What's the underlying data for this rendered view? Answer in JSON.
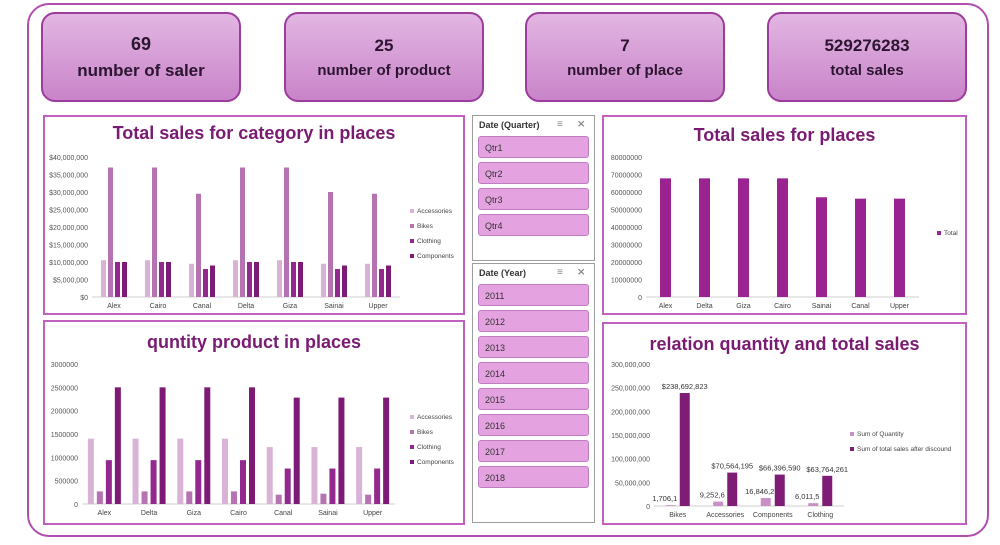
{
  "kpis": [
    {
      "value": "69",
      "label": "number of saler"
    },
    {
      "value": "25",
      "label": "number of product"
    },
    {
      "value": "7",
      "label": "number of place"
    },
    {
      "value": "529276283",
      "label": "total sales"
    }
  ],
  "slicers": {
    "quarter": {
      "title": "Date (Quarter)",
      "items": [
        "Qtr1",
        "Qtr2",
        "Qtr3",
        "Qtr4"
      ]
    },
    "year": {
      "title": "Date (Year)",
      "items": [
        "2011",
        "2012",
        "2013",
        "2014",
        "2015",
        "2016",
        "2017",
        "2018"
      ]
    }
  },
  "colors": {
    "accessories": "#d9b3d6",
    "bikes": "#b673b2",
    "clothing": "#93298f",
    "components": "#7d1a75",
    "total": "#9a2392",
    "quantity": "#c78fc4",
    "sales_after_discount": "#7f1d76"
  },
  "chart_data": [
    {
      "type": "bar",
      "title": "Total sales for category in places",
      "categories": [
        "Alex",
        "Cairo",
        "Canal",
        "Delta",
        "Giza",
        "Sainai",
        "Upper"
      ],
      "yticks": [
        "$40,000,000",
        "$35,000,000",
        "$30,000,000",
        "$25,000,000",
        "$20,000,000",
        "$15,000,000",
        "$10,000,000",
        "$5,000,000",
        "$0"
      ],
      "ylim": [
        0,
        40000000
      ],
      "legend": "right",
      "series": [
        {
          "name": "Accessories",
          "values": [
            10500000,
            10500000,
            9500000,
            10500000,
            10500000,
            9500000,
            9500000
          ]
        },
        {
          "name": "Bikes",
          "values": [
            37000000,
            37000000,
            29500000,
            37000000,
            37000000,
            30000000,
            29500000
          ]
        },
        {
          "name": "Clothing",
          "values": [
            10000000,
            10000000,
            8000000,
            10000000,
            10000000,
            8000000,
            8000000
          ]
        },
        {
          "name": "Components",
          "values": [
            10000000,
            10000000,
            9000000,
            10000000,
            10000000,
            9000000,
            9000000
          ]
        }
      ]
    },
    {
      "type": "bar",
      "title": "Total sales for places",
      "categories": [
        "Alex",
        "Delta",
        "Giza",
        "Cairo",
        "Sainai",
        "Canal",
        "Upper"
      ],
      "yticks": [
        "80000000",
        "70000000",
        "60000000",
        "50000000",
        "40000000",
        "30000000",
        "20000000",
        "10000000",
        "0"
      ],
      "ylim": [
        0,
        80000000
      ],
      "legend": "right",
      "series": [
        {
          "name": "Total",
          "values": [
            67800000,
            67800000,
            67800000,
            67800000,
            57000000,
            56200000,
            56200000
          ]
        }
      ]
    },
    {
      "type": "bar",
      "title": "quntity product in places",
      "categories": [
        "Alex",
        "Delta",
        "Giza",
        "Cairo",
        "Canal",
        "Sainai",
        "Upper"
      ],
      "yticks": [
        "3000000",
        "2500000",
        "2000000",
        "1500000",
        "1000000",
        "500000",
        "0"
      ],
      "ylim": [
        0,
        3000000
      ],
      "legend": "right",
      "series": [
        {
          "name": "Accessories",
          "values": [
            1400000,
            1400000,
            1400000,
            1400000,
            1220000,
            1220000,
            1220000
          ]
        },
        {
          "name": "Bikes",
          "values": [
            270000,
            270000,
            270000,
            270000,
            200000,
            220000,
            200000
          ]
        },
        {
          "name": "Clothing",
          "values": [
            940000,
            940000,
            940000,
            940000,
            760000,
            760000,
            760000
          ]
        },
        {
          "name": "Components",
          "values": [
            2500000,
            2500000,
            2500000,
            2500000,
            2280000,
            2280000,
            2280000
          ]
        }
      ]
    },
    {
      "type": "bar",
      "title": "relation quantity and total sales",
      "categories": [
        "Bikes",
        "Accessories",
        "Components",
        "Clothing"
      ],
      "yticks": [
        "300,000,000",
        "250,000,000",
        "200,000,000",
        "150,000,000",
        "100,000,000",
        "50,000,000",
        "0"
      ],
      "ylim": [
        0,
        300000000
      ],
      "legend": "right",
      "series": [
        {
          "name": "Sum of Quantity",
          "values": [
            1706100,
            9252600,
            16846200,
            6011500
          ],
          "labels": [
            "1,706,1",
            "9,252,6",
            "16,846,2",
            "6,011,5"
          ]
        },
        {
          "name": "Sum of total sales after discound",
          "values": [
            238692823,
            70564195,
            66396590,
            63764261
          ],
          "labels": [
            "$238,692,823",
            "$70,564,195",
            "$66,396,590",
            "$63,764,261"
          ]
        }
      ]
    }
  ]
}
